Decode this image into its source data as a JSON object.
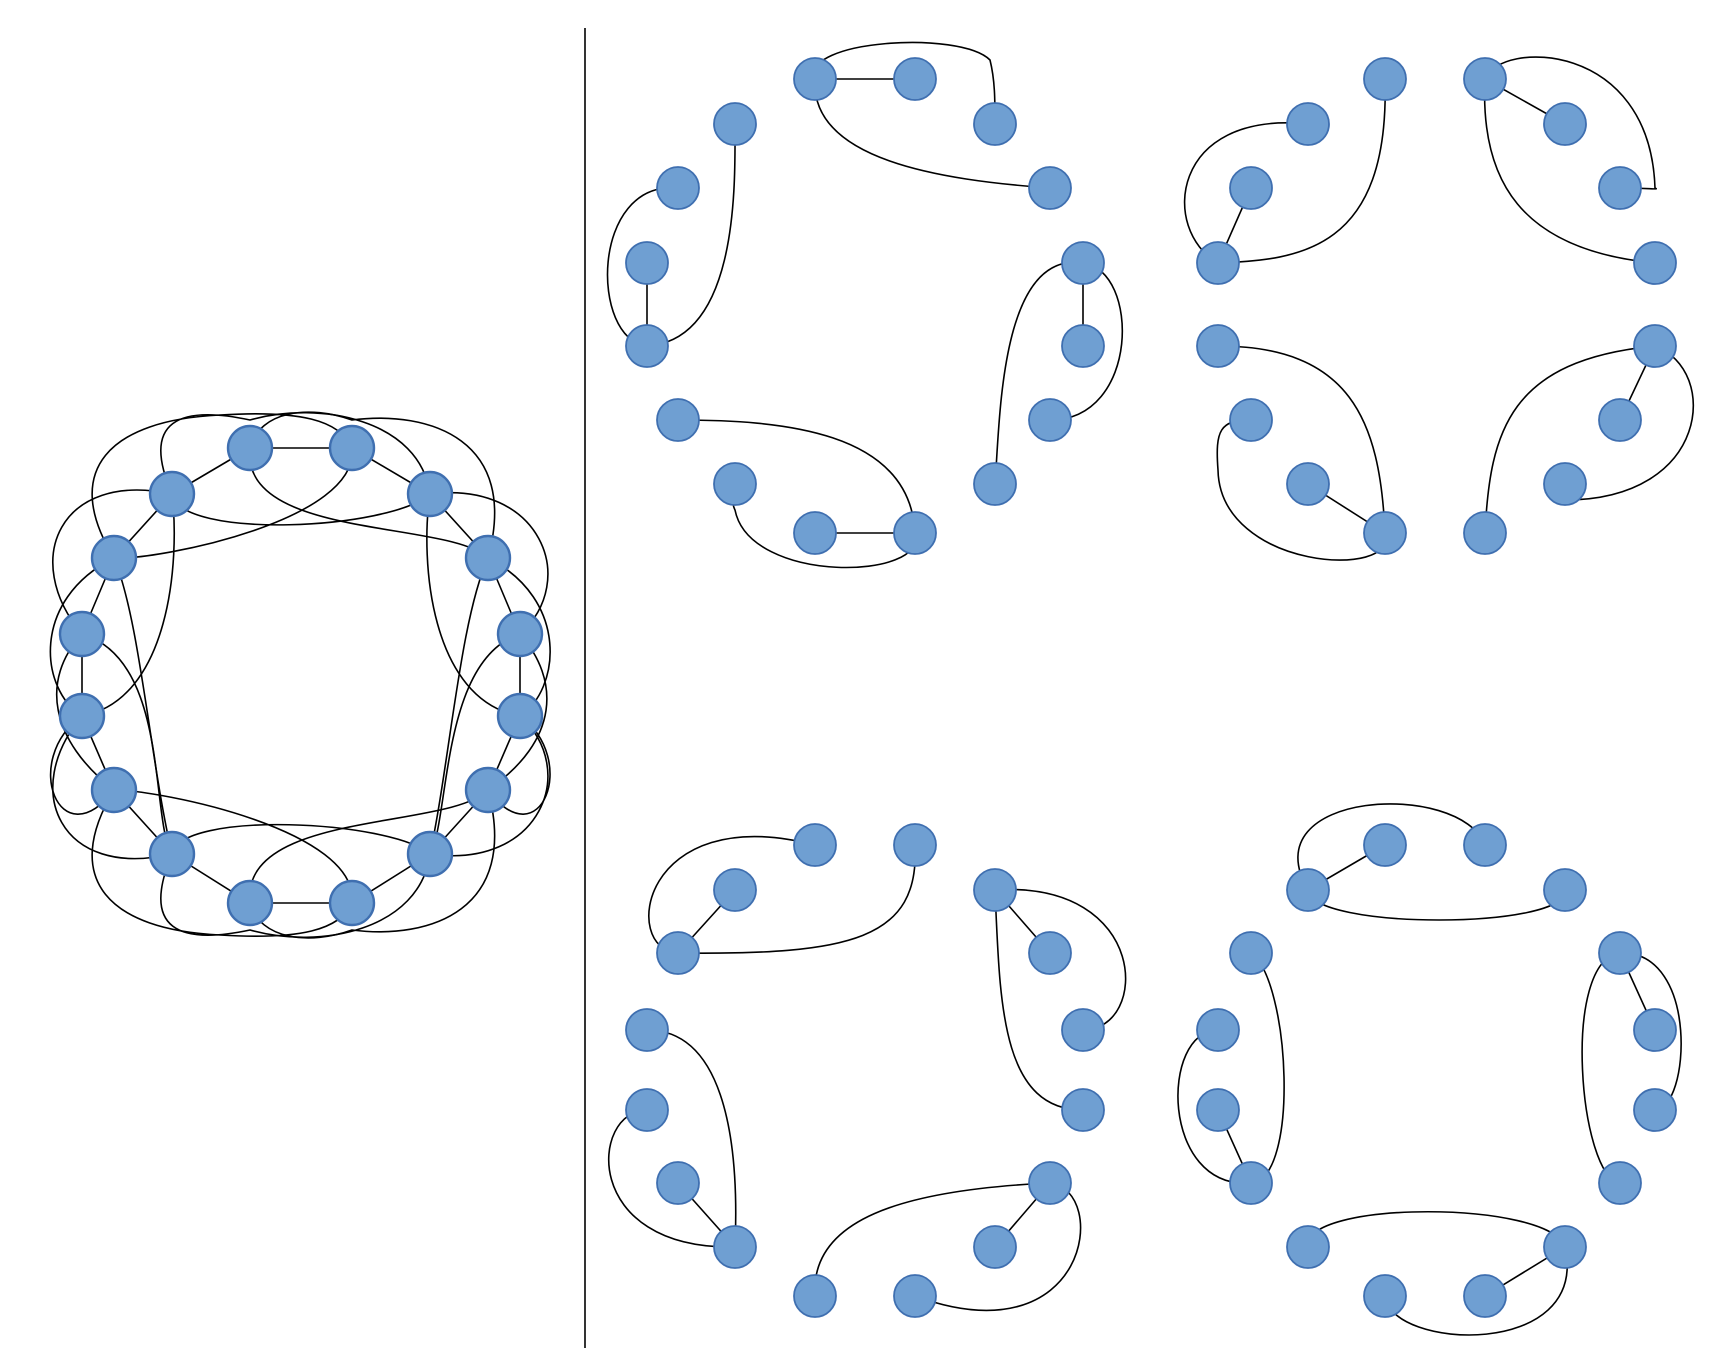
{
  "diagram": {
    "node_fill": "#6f9fd2",
    "node_stroke": "#3f6fb0",
    "edge_color": "#000000",
    "divider_color": "#000000",
    "full_graph": {
      "node_count": 16
    },
    "decompositions": {
      "panel_count": 4,
      "nodes_per_panel": 16,
      "groups_per_panel": 4
    }
  }
}
